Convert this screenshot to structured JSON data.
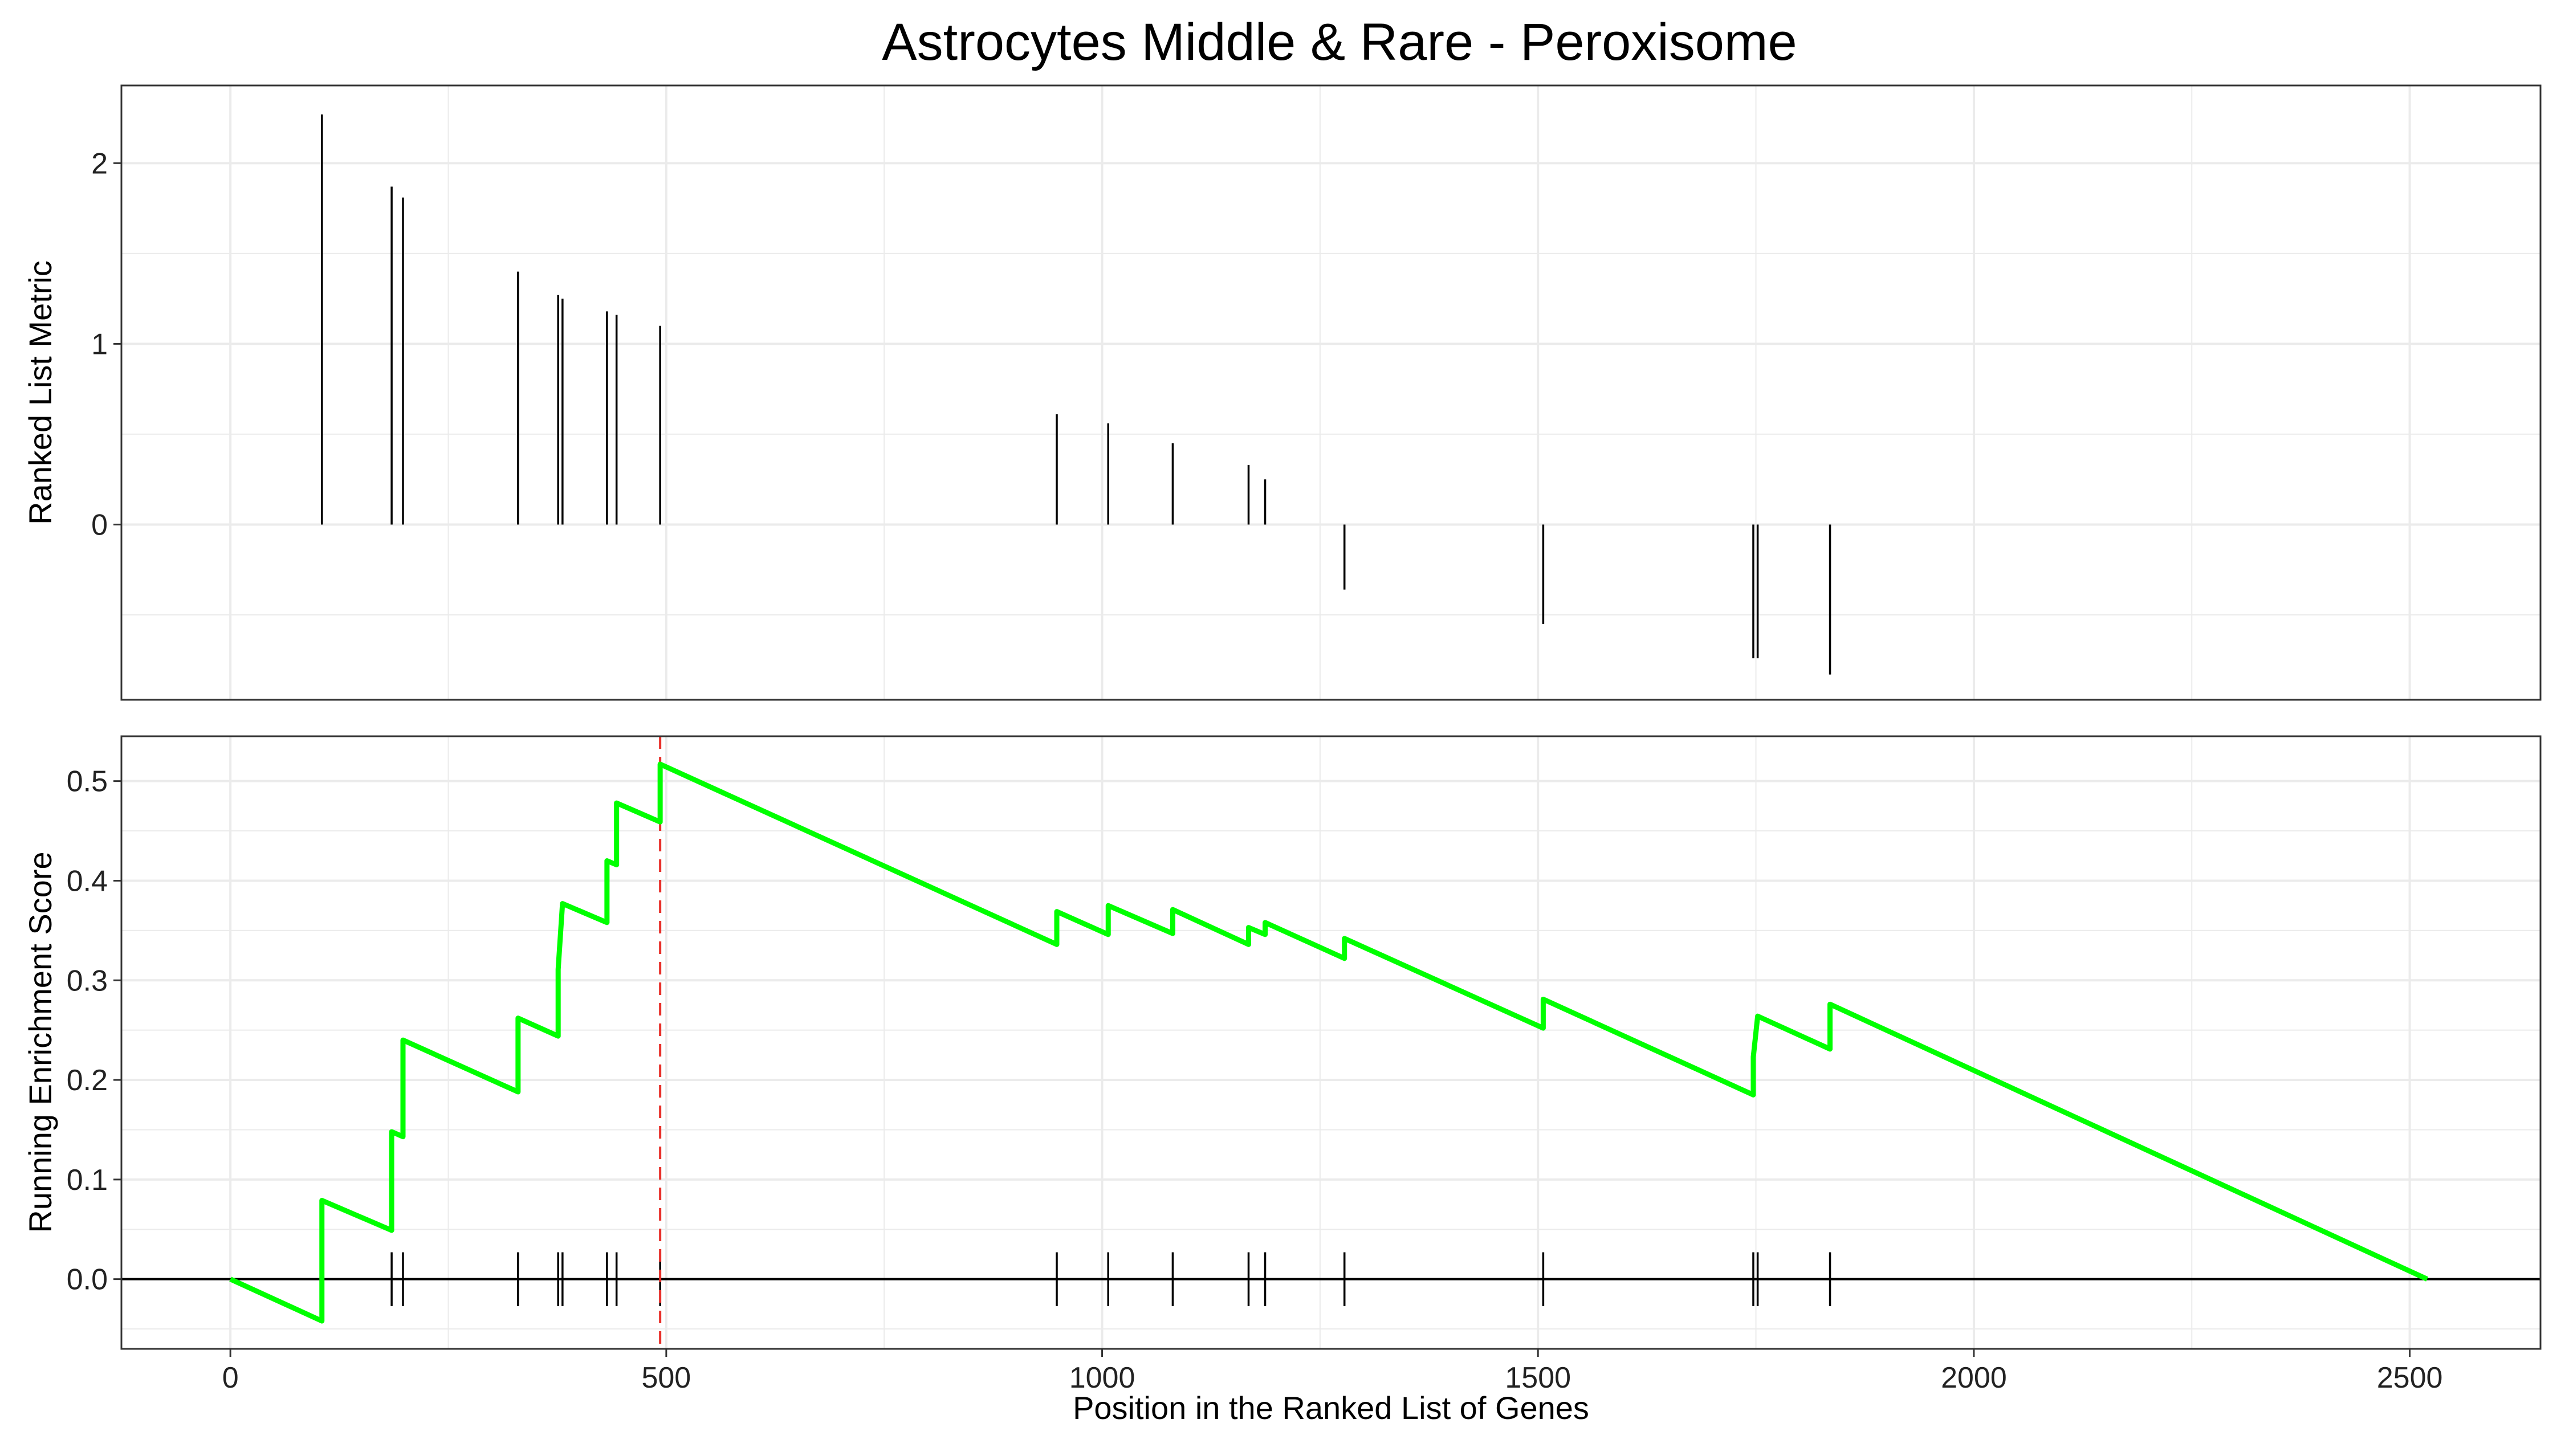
{
  "chart_data": {
    "type": "line",
    "title": "Astrocytes Middle & Rare - Peroxisome",
    "xlabel": "Position in the Ranked List of Genes",
    "xlim": [
      -125,
      2650
    ],
    "xticks": [
      0,
      500,
      1000,
      1500,
      2000,
      2500
    ],
    "x_tick_labels": [
      "0",
      "500",
      "1000",
      "1500",
      "2000",
      "2500"
    ],
    "n_genes": 2520,
    "colors": {
      "running_score": "#00ff00",
      "peak_marker": "#e8302a",
      "hits": "#000000",
      "grid": "#ebebeb",
      "panel_border": "#333333"
    },
    "panels": [
      {
        "name": "ranked-list-metric",
        "ylabel": "Ranked List Metric",
        "ylim": [
          -0.97,
          2.43
        ],
        "yticks": [
          0,
          1,
          2
        ],
        "y_tick_labels": [
          "0",
          "1",
          "2"
        ],
        "grid": true
      },
      {
        "name": "running-enrichment-score",
        "ylabel": "Running Enrichment Score",
        "ylim": [
          -0.07,
          0.545
        ],
        "yticks": [
          0.0,
          0.1,
          0.2,
          0.3,
          0.4,
          0.5
        ],
        "y_tick_labels": [
          "0.0",
          "0.1",
          "0.2",
          "0.3",
          "0.4",
          "0.5"
        ],
        "grid": true
      }
    ],
    "gene_hits": [
      {
        "position": 105,
        "metric": 2.27
      },
      {
        "position": 185,
        "metric": 1.87
      },
      {
        "position": 198,
        "metric": 1.81
      },
      {
        "position": 330,
        "metric": 1.4
      },
      {
        "position": 376,
        "metric": 1.27
      },
      {
        "position": 381,
        "metric": 1.25
      },
      {
        "position": 432,
        "metric": 1.18
      },
      {
        "position": 443,
        "metric": 1.16
      },
      {
        "position": 493,
        "metric": 1.1
      },
      {
        "position": 948,
        "metric": 0.61
      },
      {
        "position": 1007,
        "metric": 0.56
      },
      {
        "position": 1081,
        "metric": 0.45
      },
      {
        "position": 1168,
        "metric": 0.33
      },
      {
        "position": 1187,
        "metric": 0.25
      },
      {
        "position": 1278,
        "metric": -0.36
      },
      {
        "position": 1506,
        "metric": -0.55
      },
      {
        "position": 1747,
        "metric": -0.74
      },
      {
        "position": 1752,
        "metric": -0.74
      },
      {
        "position": 1835,
        "metric": -0.83
      }
    ],
    "running_score": {
      "x": [
        0,
        105,
        105,
        185,
        185,
        198,
        198,
        330,
        330,
        376,
        376,
        381,
        381,
        432,
        432,
        443,
        443,
        493,
        493,
        948,
        948,
        1007,
        1007,
        1081,
        1081,
        1168,
        1168,
        1187,
        1187,
        1278,
        1278,
        1506,
        1506,
        1747,
        1747,
        1752,
        1752,
        1835,
        1835,
        2520
      ],
      "y": [
        0.0,
        -0.042,
        0.079,
        0.049,
        0.148,
        0.143,
        0.24,
        0.188,
        0.262,
        0.244,
        0.311,
        0.377,
        0.377,
        0.358,
        0.42,
        0.416,
        0.478,
        0.459,
        0.517,
        0.336,
        0.369,
        0.346,
        0.375,
        0.347,
        0.371,
        0.336,
        0.353,
        0.346,
        0.358,
        0.322,
        0.342,
        0.252,
        0.281,
        0.185,
        0.223,
        0.264,
        0.264,
        0.231,
        0.276,
        0.0
      ]
    },
    "max_enrichment": {
      "position": 493,
      "score": 0.517
    }
  }
}
